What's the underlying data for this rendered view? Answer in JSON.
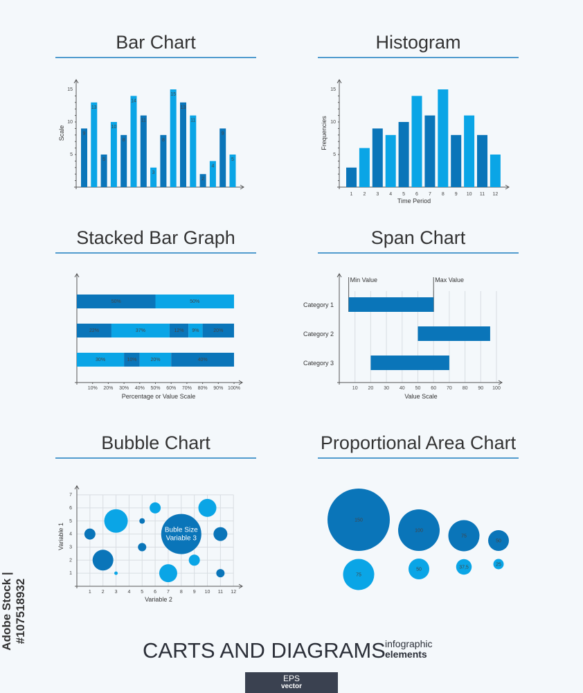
{
  "colors": {
    "dark": "#0a75b9",
    "light": "#0aa5e6",
    "axis": "#555555",
    "rule": "#1a7cc0"
  },
  "footer": {
    "title": "CARTS AND DIAGRAMS",
    "sub1": "infographic",
    "sub2": "elements",
    "badge1": "EPS",
    "badge2": "vector"
  },
  "watermark": "Adobe Stock | #107518932",
  "chart_data": [
    {
      "type": "bar",
      "title": "Bar Chart",
      "ylabel": "Scale",
      "xlabel": "",
      "ylim": [
        0,
        15
      ],
      "yticks": [
        "5",
        "10",
        "15"
      ],
      "values": [
        9,
        13,
        5,
        10,
        8,
        14,
        11,
        3,
        8,
        15,
        13,
        11,
        2,
        4,
        9,
        5
      ]
    },
    {
      "type": "bar",
      "title": "Histogram",
      "ylabel": "Frequencies",
      "xlabel": "Time Period",
      "ylim": [
        0,
        15
      ],
      "yticks": [
        "5",
        "10",
        "15"
      ],
      "categories": [
        "1",
        "2",
        "3",
        "4",
        "5",
        "6",
        "7",
        "8",
        "9",
        "10",
        "11",
        "12"
      ],
      "values": [
        3,
        6,
        9,
        8,
        10,
        14,
        11,
        15,
        8,
        11,
        8,
        5
      ]
    },
    {
      "type": "stacked-bar",
      "title": "Stacked Bar Graph",
      "xlabel": "Percentage or Value Scale",
      "xticks": [
        "10%",
        "20%",
        "30%",
        "40%",
        "50%",
        "60%",
        "70%",
        "80%",
        "90%",
        "100%"
      ],
      "rows": [
        [
          {
            "v": 50,
            "label": "50%",
            "c": "dark"
          },
          {
            "v": 50,
            "label": "50%",
            "c": "light"
          }
        ],
        [
          {
            "v": 22,
            "label": "22%",
            "c": "dark"
          },
          {
            "v": 37,
            "label": "37%",
            "c": "light"
          },
          {
            "v": 12,
            "label": "12%",
            "c": "dark"
          },
          {
            "v": 9,
            "label": "9%",
            "c": "light"
          },
          {
            "v": 20,
            "label": "20%",
            "c": "dark"
          }
        ],
        [
          {
            "v": 30,
            "label": "30%",
            "c": "light"
          },
          {
            "v": 10,
            "label": "10%",
            "c": "dark"
          },
          {
            "v": 20,
            "label": "20%",
            "c": "light"
          },
          {
            "v": 40,
            "label": "40%",
            "c": "dark"
          }
        ]
      ]
    },
    {
      "type": "span",
      "title": "Span Chart",
      "xlabel": "Value Scale",
      "xlim": [
        0,
        100
      ],
      "xticks": [
        "10",
        "20",
        "30",
        "40",
        "50",
        "60",
        "70",
        "80",
        "90",
        "100"
      ],
      "min_label": "Min Value",
      "max_label": "Max Value",
      "categories": [
        "Category 1",
        "Category 2",
        "Category 3"
      ],
      "ranges": [
        [
          6,
          60
        ],
        [
          50,
          96
        ],
        [
          20,
          70
        ]
      ]
    },
    {
      "type": "scatter",
      "title": "Bubble Chart",
      "xlabel": "Variable 2",
      "ylabel": "Variable 1",
      "xlim": [
        0,
        12
      ],
      "ylim": [
        0,
        7
      ],
      "xticks": [
        "1",
        "2",
        "3",
        "4",
        "5",
        "6",
        "7",
        "8",
        "9",
        "10",
        "11",
        "12"
      ],
      "yticks": [
        "1",
        "2",
        "3",
        "4",
        "5",
        "6",
        "7"
      ],
      "annotation": [
        "Buble Size",
        "Variable 3"
      ],
      "points": [
        {
          "x": 1,
          "y": 4,
          "size": 8,
          "c": "dark"
        },
        {
          "x": 2,
          "y": 2,
          "size": 15,
          "c": "dark"
        },
        {
          "x": 3,
          "y": 1,
          "size": 2.5,
          "c": "light"
        },
        {
          "x": 3,
          "y": 5,
          "size": 17,
          "c": "light"
        },
        {
          "x": 5,
          "y": 5,
          "size": 4,
          "c": "dark"
        },
        {
          "x": 5,
          "y": 3,
          "size": 6,
          "c": "dark"
        },
        {
          "x": 6,
          "y": 6,
          "size": 8,
          "c": "light"
        },
        {
          "x": 7,
          "y": 1,
          "size": 13,
          "c": "light"
        },
        {
          "x": 8,
          "y": 4,
          "size": 29,
          "c": "dark"
        },
        {
          "x": 9,
          "y": 2,
          "size": 8,
          "c": "light"
        },
        {
          "x": 10,
          "y": 6,
          "size": 13,
          "c": "light"
        },
        {
          "x": 11,
          "y": 4,
          "size": 10,
          "c": "dark"
        },
        {
          "x": 11,
          "y": 1,
          "size": 6,
          "c": "dark"
        }
      ]
    },
    {
      "type": "proportional-area",
      "title": "Proportional Area Chart",
      "series": [
        {
          "values": [
            150,
            100,
            75,
            50
          ],
          "labels": [
            "150",
            "100",
            "75",
            "50"
          ],
          "c": "dark"
        },
        {
          "values": [
            75,
            50,
            37.5,
            25
          ],
          "labels": [
            "75",
            "50",
            "37,5",
            "25"
          ],
          "c": "light"
        }
      ]
    }
  ]
}
